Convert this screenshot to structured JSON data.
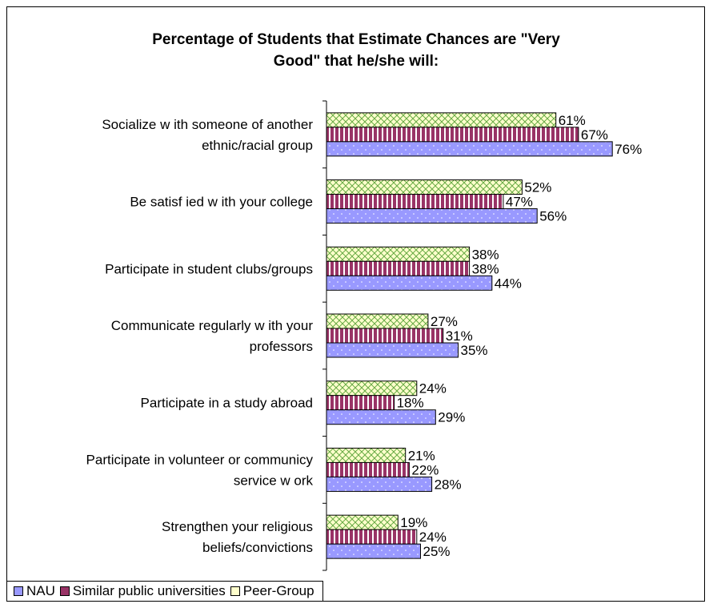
{
  "chart_data": {
    "type": "bar",
    "orientation": "horizontal",
    "title": "Percentage of Students that Estimate Chances are \"Very\nGood\" that he/she will:",
    "categories": [
      "Socialize w ith someone of another\nethnic/racial group",
      "Be satisf ied w ith your college",
      "Participate in student clubs/groups",
      "Communicate regularly w ith your\nprofessors",
      "Participate in a study abroad",
      "Participate in volunteer or communicy\nservice w ork",
      "Strengthen your religious\nbeliefs/convictions"
    ],
    "series": [
      {
        "name": "Peer-Group",
        "values": [
          61,
          52,
          38,
          27,
          24,
          21,
          19
        ],
        "labels": [
          "61%",
          "52%",
          "38%",
          "27%",
          "24%",
          "21%",
          "19%"
        ],
        "color": "#ffffcc"
      },
      {
        "name": "Similar public universities",
        "values": [
          67,
          47,
          38,
          31,
          18,
          22,
          24
        ],
        "labels": [
          "67%",
          "47%",
          "38%",
          "31%",
          "18%",
          "22%",
          "24%"
        ],
        "color": "#993366"
      },
      {
        "name": "NAU",
        "values": [
          76,
          56,
          44,
          35,
          29,
          28,
          25
        ],
        "labels": [
          "76%",
          "56%",
          "44%",
          "35%",
          "29%",
          "28%",
          "25%"
        ],
        "color": "#9999ff"
      }
    ],
    "xlim": [
      0,
      100
    ],
    "grid": false,
    "legend_position": "bottom-left"
  },
  "legend": [
    {
      "name": "NAU",
      "color": "#9999ff"
    },
    {
      "name": "Similar public universities",
      "color": "#993366"
    },
    {
      "name": "Peer-Group",
      "color": "#ffffcc"
    }
  ]
}
